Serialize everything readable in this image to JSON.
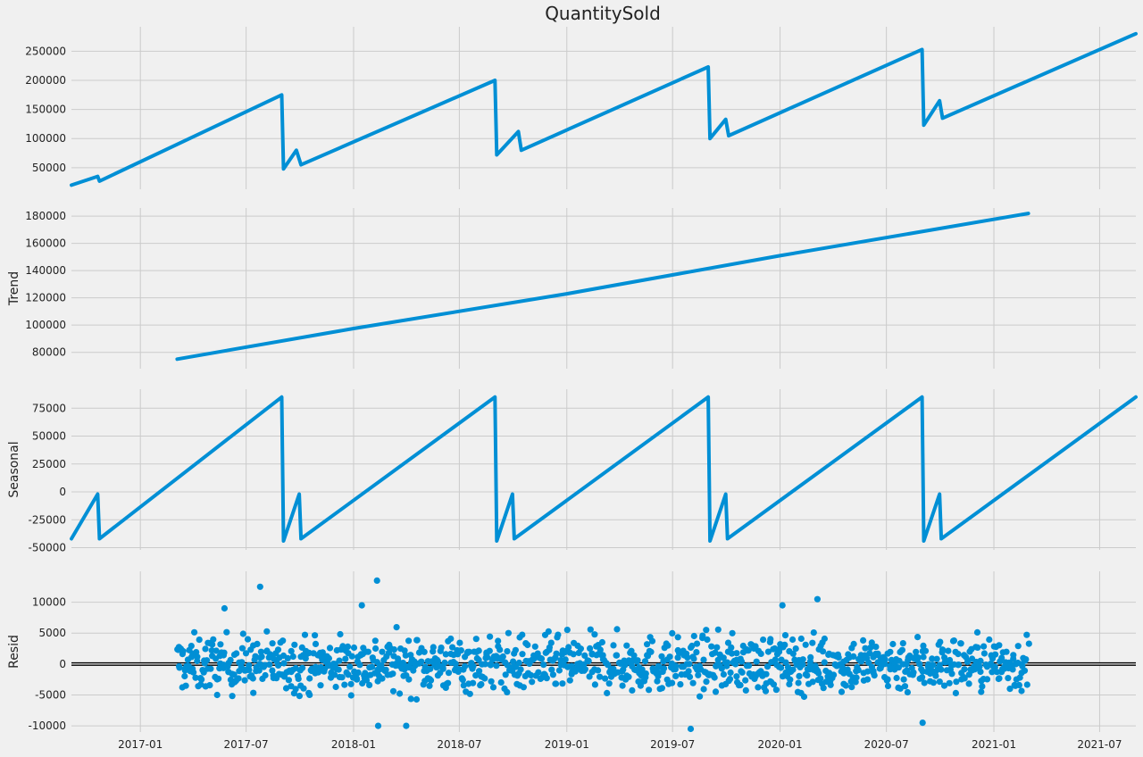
{
  "chart_data": {
    "type": "line",
    "title": "QuantitySold",
    "x_range": [
      "2016-09-05",
      "2021-09-01"
    ],
    "x_ticks": [
      "2017-01",
      "2017-07",
      "2018-01",
      "2018-07",
      "2019-01",
      "2019-07",
      "2020-01",
      "2020-07",
      "2021-01",
      "2021-07"
    ],
    "grid": true,
    "colors": {
      "series": "#008fd5",
      "background": "#f0f0f0",
      "grid": "#cbcbcb",
      "zero_line": "#000000"
    },
    "panels": [
      {
        "name": "QuantitySold",
        "type": "line",
        "ylabel": "",
        "ylim": [
          13000,
          292000
        ],
        "yticks": [
          50000,
          100000,
          150000,
          200000,
          250000
        ],
        "series": [
          {
            "x": [
              "2016-09-05",
              "2016-10-20",
              "2016-10-23",
              "2017-08-31",
              "2017-09-03",
              "2017-09-25",
              "2017-10-03",
              "2018-08-31",
              "2018-09-03",
              "2018-10-10",
              "2018-10-15",
              "2019-08-31",
              "2019-09-03",
              "2019-09-30",
              "2019-10-05",
              "2020-08-31",
              "2020-09-03",
              "2020-09-30",
              "2020-10-05",
              "2021-09-01"
            ],
            "y": [
              20000,
              35000,
              27000,
              175000,
              48000,
              80000,
              55000,
              200000,
              72000,
              112000,
              80000,
              223000,
              100000,
              133000,
              105000,
              253000,
              123000,
              165000,
              135000,
              280000
            ]
          }
        ]
      },
      {
        "name": "Trend",
        "type": "line",
        "ylabel": "Trend",
        "ylim": [
          68000,
          186000
        ],
        "yticks": [
          80000,
          100000,
          120000,
          140000,
          160000,
          180000
        ],
        "series": [
          {
            "x": [
              "2017-03-05",
              "2018-01-01",
              "2019-01-01",
              "2020-01-01",
              "2021-03-01"
            ],
            "y": [
              75000,
              97500,
              123000,
              151000,
              182000
            ]
          }
        ]
      },
      {
        "name": "Seasonal",
        "type": "line",
        "ylabel": "Seasonal",
        "ylim": [
          -52000,
          92000
        ],
        "yticks": [
          -50000,
          -25000,
          0,
          25000,
          50000,
          75000
        ],
        "series": [
          {
            "x": [
              "2016-09-05",
              "2016-10-20",
              "2016-10-23",
              "2017-08-31",
              "2017-09-03",
              "2017-09-30",
              "2017-10-03",
              "2018-08-31",
              "2018-09-03",
              "2018-09-30",
              "2018-10-03",
              "2019-08-31",
              "2019-09-03",
              "2019-09-30",
              "2019-10-03",
              "2020-08-31",
              "2020-09-03",
              "2020-09-30",
              "2020-10-03",
              "2021-09-01"
            ],
            "y": [
              -42000,
              -2000,
              -42000,
              85000,
              -44000,
              -2000,
              -42000,
              85000,
              -44000,
              -2000,
              -42000,
              85000,
              -44000,
              -2000,
              -42000,
              85000,
              -44000,
              -2000,
              -42000,
              85000
            ]
          }
        ]
      },
      {
        "name": "Resid",
        "type": "scatter",
        "ylabel": "Resid",
        "ylim": [
          -11000,
          15000
        ],
        "yticks": [
          -10000,
          -5000,
          0,
          5000,
          10000
        ],
        "x_range": [
          "2017-03-05",
          "2021-03-01"
        ],
        "spread": 8000,
        "outliers": [
          {
            "x": "2017-05-25",
            "y": 9000
          },
          {
            "x": "2017-07-25",
            "y": 12500
          },
          {
            "x": "2018-02-10",
            "y": 13500
          },
          {
            "x": "2018-01-15",
            "y": 9500
          },
          {
            "x": "2018-02-12",
            "y": -10000
          },
          {
            "x": "2018-04-01",
            "y": -10000
          },
          {
            "x": "2019-08-01",
            "y": -10500
          },
          {
            "x": "2020-01-05",
            "y": 9500
          },
          {
            "x": "2020-03-05",
            "y": 10500
          },
          {
            "x": "2020-09-01",
            "y": -9500
          }
        ]
      }
    ]
  }
}
